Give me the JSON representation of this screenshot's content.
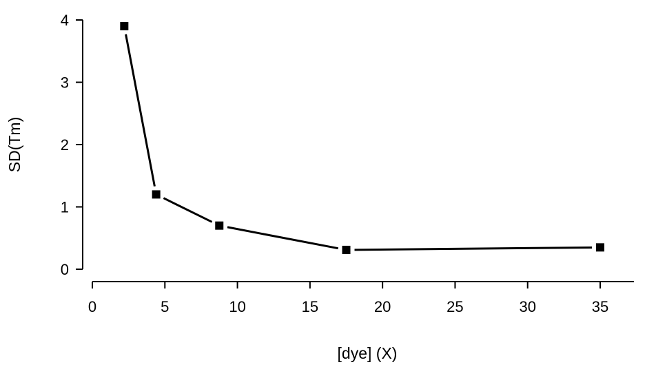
{
  "chart_data": {
    "type": "line",
    "title": "",
    "xlabel": "[dye] (X)",
    "ylabel": "SD(Tm)",
    "xlim": [
      0,
      38
    ],
    "ylim": [
      0,
      4.1
    ],
    "x_ticks": [
      0,
      5,
      10,
      15,
      20,
      25,
      30,
      35
    ],
    "y_ticks": [
      0,
      1,
      2,
      3,
      4
    ],
    "grid": false,
    "marker": "square",
    "series": [
      {
        "x": [
          2.2,
          4.4,
          8.75,
          17.5,
          35
        ],
        "y": [
          3.9,
          1.2,
          0.7,
          0.31,
          0.35
        ]
      }
    ]
  }
}
